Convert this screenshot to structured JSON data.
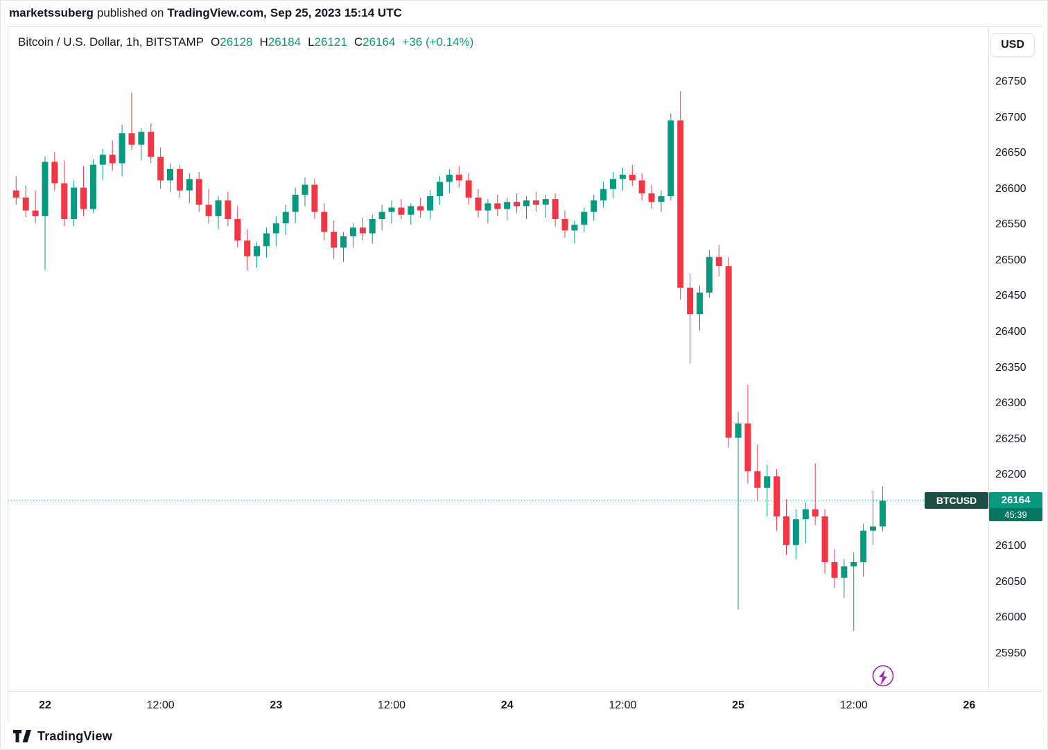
{
  "attribution": {
    "user": "marketssuberg",
    "middle": "published on",
    "site": "TradingView.com,",
    "date": "Sep 25, 2023 15:14 UTC"
  },
  "legend": {
    "symbol_title": "Bitcoin / U.S. Dollar, 1h, BITSTAMP",
    "o_label": "O",
    "o_value": "26128",
    "h_label": "H",
    "h_value": "26184",
    "l_label": "L",
    "l_value": "26121",
    "c_label": "C",
    "c_value": "26164",
    "change": "+36 (+0.14%)"
  },
  "currency_button": "USD",
  "price_line": {
    "symbol_label": "BTCUSD",
    "price_label": "26164",
    "countdown": "45:39",
    "value": 26164
  },
  "footer": {
    "brand": "TradingView"
  },
  "colors": {
    "up": "#089981",
    "down": "#f23645",
    "badge_symbol_bg": "#1d4e46",
    "badge_price_bg": "#089981",
    "badge_countdown_bg": "#067763",
    "marker_purple": "#9c27b0",
    "text": "#131722",
    "axis_border": "#e0e3eb"
  },
  "chart_data": {
    "type": "candlestick",
    "title": "Bitcoin / U.S. Dollar, 1h, BITSTAMP",
    "symbol": "BTCUSD",
    "interval": "1h",
    "exchange": "BITSTAMP",
    "x_start": "Sep 21 2023 21:00 UTC",
    "x_step_hours": 1,
    "ylim": [
      25930,
      26790
    ],
    "last_price": 26164,
    "last_candle": {
      "open": 26128,
      "high": 26184,
      "low": 26121,
      "close": 26164,
      "change": "+36 (+0.14%)"
    },
    "price_ticks": [
      26750,
      26700,
      26650,
      26600,
      26550,
      26500,
      26450,
      26400,
      26350,
      26300,
      26250,
      26200,
      26100,
      26050,
      26000,
      25950
    ],
    "hidden_price_tick": 26150,
    "time_ticks": [
      {
        "label": "22",
        "index": 3,
        "major": true
      },
      {
        "label": "12:00",
        "index": 15,
        "major": false
      },
      {
        "label": "23",
        "index": 27,
        "major": true
      },
      {
        "label": "12:00",
        "index": 39,
        "major": false
      },
      {
        "label": "24",
        "index": 51,
        "major": true
      },
      {
        "label": "12:00",
        "index": 63,
        "major": false
      },
      {
        "label": "25",
        "index": 75,
        "major": true
      },
      {
        "label": "12:00",
        "index": 87,
        "major": false
      },
      {
        "label": "26",
        "index": 99,
        "major": true
      }
    ],
    "ohlc": [
      [
        26598,
        26618,
        26578,
        26588
      ],
      [
        26588,
        26605,
        26560,
        26570
      ],
      [
        26570,
        26598,
        26552,
        26562
      ],
      [
        26562,
        26645,
        26487,
        26638
      ],
      [
        26638,
        26652,
        26598,
        26608
      ],
      [
        26608,
        26640,
        26548,
        26558
      ],
      [
        26558,
        26612,
        26548,
        26602
      ],
      [
        26602,
        26632,
        26562,
        26572
      ],
      [
        26572,
        26642,
        26566,
        26634
      ],
      [
        26634,
        26656,
        26612,
        26648
      ],
      [
        26648,
        26668,
        26626,
        26636
      ],
      [
        26636,
        26690,
        26618,
        26678
      ],
      [
        26678,
        26735,
        26655,
        26662
      ],
      [
        26662,
        26685,
        26640,
        26680
      ],
      [
        26680,
        26692,
        26636,
        26645
      ],
      [
        26645,
        26658,
        26600,
        26612
      ],
      [
        26612,
        26636,
        26596,
        26628
      ],
      [
        26628,
        26634,
        26588,
        26598
      ],
      [
        26598,
        26622,
        26580,
        26614
      ],
      [
        26614,
        26624,
        26568,
        26578
      ],
      [
        26578,
        26600,
        26552,
        26562
      ],
      [
        26562,
        26590,
        26544,
        26584
      ],
      [
        26584,
        26596,
        26548,
        26558
      ],
      [
        26558,
        26576,
        26518,
        26528
      ],
      [
        26528,
        26544,
        26486,
        26506
      ],
      [
        26506,
        26526,
        26490,
        26520
      ],
      [
        26520,
        26546,
        26504,
        26538
      ],
      [
        26538,
        26562,
        26520,
        26552
      ],
      [
        26552,
        26578,
        26536,
        26568
      ],
      [
        26568,
        26602,
        26552,
        26592
      ],
      [
        26592,
        26616,
        26576,
        26606
      ],
      [
        26606,
        26614,
        26558,
        26568
      ],
      [
        26568,
        26580,
        26528,
        26540
      ],
      [
        26540,
        26556,
        26502,
        26518
      ],
      [
        26518,
        26540,
        26498,
        26534
      ],
      [
        26534,
        26552,
        26518,
        26546
      ],
      [
        26546,
        26560,
        26528,
        26538
      ],
      [
        26538,
        26564,
        26524,
        26558
      ],
      [
        26558,
        26578,
        26542,
        26568
      ],
      [
        26568,
        26584,
        26552,
        26574
      ],
      [
        26574,
        26586,
        26558,
        26564
      ],
      [
        26564,
        26580,
        26550,
        26576
      ],
      [
        26576,
        26588,
        26560,
        26570
      ],
      [
        26570,
        26598,
        26558,
        26590
      ],
      [
        26590,
        26618,
        26578,
        26610
      ],
      [
        26610,
        26628,
        26594,
        26620
      ],
      [
        26620,
        26632,
        26602,
        26612
      ],
      [
        26612,
        26622,
        26578,
        26588
      ],
      [
        26588,
        26600,
        26560,
        26570
      ],
      [
        26570,
        26586,
        26552,
        26580
      ],
      [
        26580,
        26592,
        26562,
        26572
      ],
      [
        26572,
        26588,
        26556,
        26582
      ],
      [
        26582,
        26594,
        26566,
        26576
      ],
      [
        26576,
        26590,
        26558,
        26584
      ],
      [
        26584,
        26596,
        26568,
        26578
      ],
      [
        26578,
        26592,
        26560,
        26586
      ],
      [
        26586,
        26594,
        26548,
        26558
      ],
      [
        26558,
        26570,
        26532,
        26542
      ],
      [
        26542,
        26556,
        26524,
        26550
      ],
      [
        26550,
        26574,
        26540,
        26568
      ],
      [
        26568,
        26592,
        26556,
        26584
      ],
      [
        26584,
        26610,
        26574,
        26600
      ],
      [
        26600,
        26624,
        26588,
        26614
      ],
      [
        26614,
        26630,
        26598,
        26620
      ],
      [
        26620,
        26634,
        26604,
        26612
      ],
      [
        26612,
        26622,
        26584,
        26594
      ],
      [
        26594,
        26606,
        26572,
        26582
      ],
      [
        26582,
        26598,
        26568,
        26590
      ],
      [
        26590,
        26706,
        26584,
        26696
      ],
      [
        26696,
        26737,
        26445,
        26462
      ],
      [
        26462,
        26482,
        26356,
        26425
      ],
      [
        26425,
        26465,
        26402,
        26455
      ],
      [
        26455,
        26515,
        26448,
        26505
      ],
      [
        26505,
        26522,
        26478,
        26492
      ],
      [
        26492,
        26505,
        26238,
        26252
      ],
      [
        26252,
        26288,
        26012,
        26272
      ],
      [
        26272,
        26326,
        26188,
        26205
      ],
      [
        26205,
        26242,
        26164,
        26182
      ],
      [
        26182,
        26215,
        26142,
        26198
      ],
      [
        26198,
        26208,
        26122,
        26142
      ],
      [
        26142,
        26166,
        26088,
        26102
      ],
      [
        26102,
        26152,
        26082,
        26138
      ],
      [
        26138,
        26162,
        26104,
        26152
      ],
      [
        26152,
        26216,
        26130,
        26142
      ],
      [
        26142,
        26152,
        26062,
        26078
      ],
      [
        26078,
        26096,
        26042,
        26056
      ],
      [
        26056,
        26082,
        26028,
        26072
      ],
      [
        26072,
        26092,
        25982,
        26078
      ],
      [
        26078,
        26132,
        26058,
        26122
      ],
      [
        26122,
        26178,
        26102,
        26128
      ],
      [
        26128,
        26184,
        26121,
        26164
      ]
    ]
  }
}
